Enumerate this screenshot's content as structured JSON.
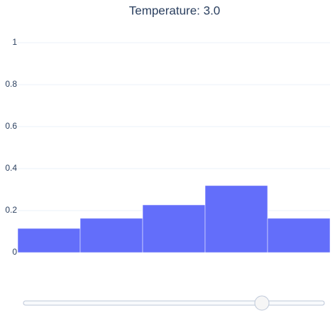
{
  "chart_data": {
    "type": "bar",
    "title": "Temperature: 3.0",
    "values": [
      0.115,
      0.163,
      0.227,
      0.319,
      0.163
    ],
    "color": "#636efa",
    "ylim": [
      0,
      1
    ],
    "yticks": [
      0,
      0.2,
      0.4,
      0.6,
      0.8,
      1
    ],
    "grid": true
  }
}
